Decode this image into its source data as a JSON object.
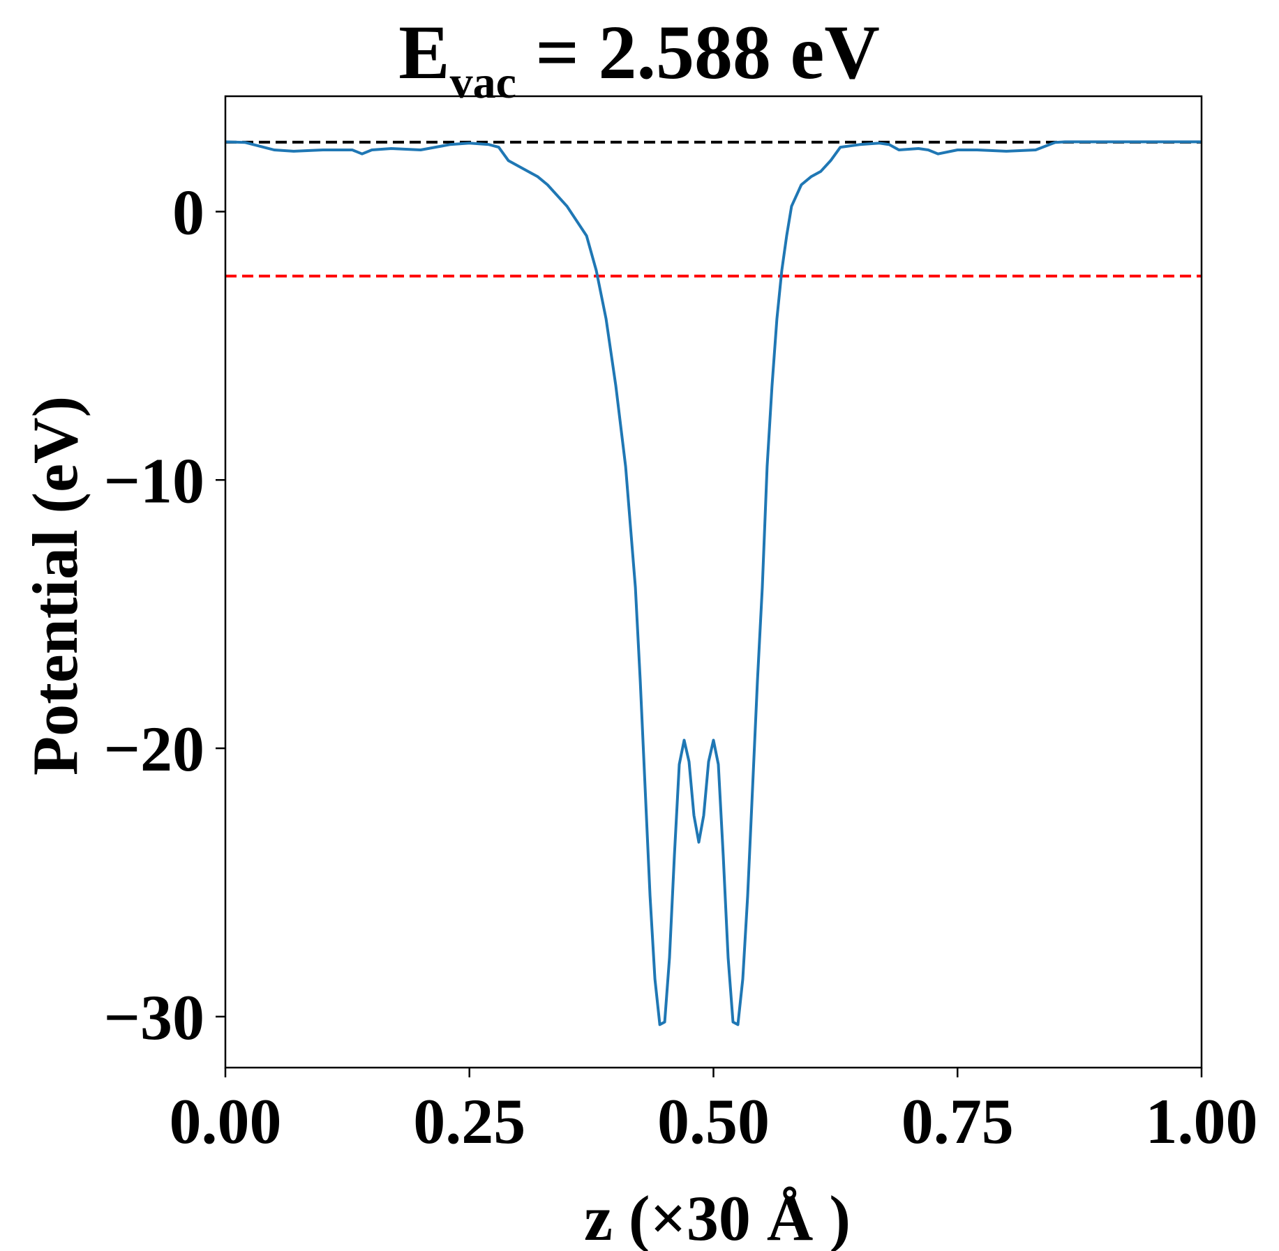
{
  "chart_data": {
    "type": "line",
    "title": {
      "main": "E",
      "subscript": "vac",
      "rest": " = 2.588 eV"
    },
    "xlabel": "z (×30 Å )",
    "ylabel": "Potential (eV)",
    "xlim": [
      0.0,
      1.0
    ],
    "ylim": [
      -31.9,
      4.3
    ],
    "xticks": [
      0.0,
      0.25,
      0.5,
      0.75,
      1.0
    ],
    "xtick_labels": [
      "0.00",
      "0.25",
      "0.50",
      "0.75",
      "1.00"
    ],
    "yticks": [
      0,
      -10,
      -20,
      -30
    ],
    "ytick_labels": [
      "0",
      "−10",
      "−20",
      "−30"
    ],
    "grid": false,
    "colors": {
      "series": "#1f77b4",
      "vacuum_line": "#000000",
      "fermi_line": "#ff0000"
    },
    "reference_lines": [
      {
        "y": 2.588,
        "color": "#000000",
        "style": "dashed"
      },
      {
        "y": -2.4,
        "color": "#ff0000",
        "style": "dashed"
      }
    ],
    "series": [
      {
        "x": [
          0.0,
          0.02,
          0.05,
          0.07,
          0.1,
          0.13,
          0.14,
          0.15,
          0.17,
          0.2,
          0.23,
          0.25,
          0.27,
          0.28,
          0.29,
          0.31,
          0.32,
          0.33,
          0.35,
          0.37,
          0.38,
          0.39,
          0.4,
          0.41,
          0.42,
          0.425,
          0.43,
          0.435,
          0.44,
          0.445,
          0.45,
          0.455,
          0.46,
          0.465,
          0.47,
          0.475,
          0.48,
          0.485,
          0.49,
          0.495,
          0.5,
          0.505,
          0.51,
          0.515,
          0.52,
          0.525,
          0.53,
          0.535,
          0.54,
          0.545,
          0.55,
          0.555,
          0.56,
          0.565,
          0.57,
          0.575,
          0.58,
          0.59,
          0.6,
          0.61,
          0.62,
          0.63,
          0.65,
          0.67,
          0.68,
          0.69,
          0.71,
          0.72,
          0.73,
          0.75,
          0.77,
          0.8,
          0.83,
          0.85,
          0.86,
          0.87,
          0.9,
          0.93,
          0.95,
          0.98,
          1.0
        ],
        "y": [
          2.6,
          2.58,
          2.3,
          2.25,
          2.3,
          2.3,
          2.15,
          2.3,
          2.35,
          2.3,
          2.5,
          2.55,
          2.5,
          2.4,
          1.9,
          1.5,
          1.3,
          1.0,
          0.2,
          -0.9,
          -2.2,
          -4.0,
          -6.5,
          -9.5,
          -14.0,
          -17.5,
          -21.5,
          -25.5,
          -28.6,
          -30.3,
          -30.2,
          -27.8,
          -24.0,
          -20.6,
          -19.7,
          -20.5,
          -22.5,
          -23.5,
          -22.5,
          -20.5,
          -19.7,
          -20.6,
          -24.0,
          -27.8,
          -30.2,
          -30.3,
          -28.6,
          -25.5,
          -21.5,
          -17.5,
          -14.0,
          -9.5,
          -6.5,
          -4.0,
          -2.2,
          -0.9,
          0.2,
          1.0,
          1.3,
          1.5,
          1.9,
          2.4,
          2.5,
          2.55,
          2.5,
          2.3,
          2.35,
          2.3,
          2.15,
          2.3,
          2.3,
          2.25,
          2.3,
          2.58,
          2.6,
          2.6,
          2.6,
          2.6,
          2.6,
          2.6,
          2.6
        ]
      }
    ]
  }
}
